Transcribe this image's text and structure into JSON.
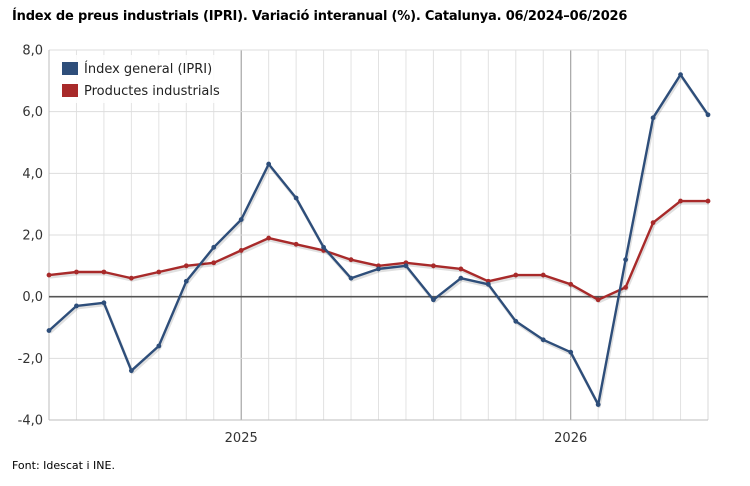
{
  "title": "Índex de preus industrials (IPRI). Variació interanual (%). Catalunya. 06/2024–06/2026",
  "source": "Font: Idescat i INE.",
  "chart_data": {
    "type": "line",
    "title": "Índex de preus industrials (IPRI). Variació interanual (%). Catalunya. 06/2024–06/2026",
    "x": [
      "2024-06",
      "2024-07",
      "2024-08",
      "2024-09",
      "2024-10",
      "2024-11",
      "2024-12",
      "2025-01",
      "2025-02",
      "2025-03",
      "2025-04",
      "2025-05",
      "2025-06",
      "2025-07",
      "2025-08",
      "2025-09",
      "2025-10",
      "2025-11",
      "2025-12",
      "2026-01",
      "2026-02",
      "2026-03",
      "2026-04",
      "2026-05",
      "2026-06"
    ],
    "x_tick_labels": [
      {
        "label": "2025",
        "x": "2025-01"
      },
      {
        "label": "2026",
        "x": "2026-01"
      }
    ],
    "y_tick_labels": [
      "8,0",
      "6,0",
      "4,0",
      "2,0",
      "0,0",
      "-2,0",
      "-4,0"
    ],
    "ylim": [
      -4,
      8
    ],
    "y_ticks": [
      8,
      6,
      4,
      2,
      0,
      -2,
      -4
    ],
    "grid": true,
    "legend": "top-left",
    "series": [
      {
        "name": "Índex general (IPRI)",
        "color": "#2e4e7a",
        "values": [
          -1.1,
          -0.3,
          -0.2,
          -2.4,
          -1.6,
          0.5,
          1.6,
          2.5,
          4.3,
          3.2,
          1.6,
          0.6,
          0.9,
          1.0,
          -0.1,
          0.6,
          0.4,
          -0.8,
          -1.4,
          -1.8,
          -3.5,
          1.2,
          5.8,
          7.2,
          5.9
        ]
      },
      {
        "name": "Productes industrials",
        "color": "#a82a2a",
        "values": [
          0.7,
          0.8,
          0.8,
          0.6,
          0.8,
          1.0,
          1.1,
          1.5,
          1.9,
          1.7,
          1.5,
          1.2,
          1.0,
          1.1,
          1.0,
          0.9,
          0.5,
          0.7,
          0.7,
          0.4,
          -0.1,
          0.3,
          2.4,
          3.1,
          3.1
        ]
      }
    ]
  }
}
